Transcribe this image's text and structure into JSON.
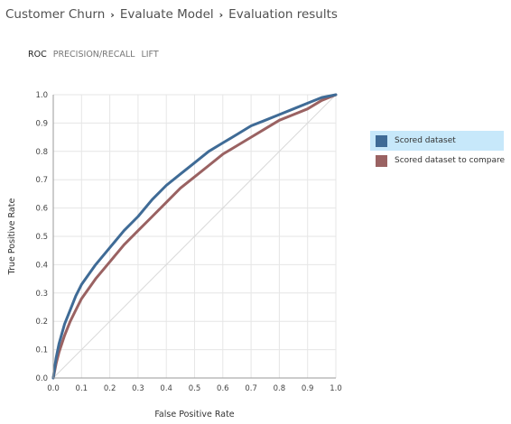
{
  "breadcrumb": {
    "items": [
      "Customer Churn",
      "Evaluate Model",
      "Evaluation results"
    ],
    "separator": "›"
  },
  "tabs": [
    {
      "label": "ROC",
      "active": true
    },
    {
      "label": "PRECISION/RECALL",
      "active": false
    },
    {
      "label": "LIFT",
      "active": false
    }
  ],
  "legend": {
    "items": [
      {
        "label": "Scored dataset",
        "color": "#3f6b96",
        "selected": true
      },
      {
        "label": "Scored dataset to compare",
        "color": "#9a6262",
        "selected": false
      }
    ]
  },
  "chart_data": {
    "type": "line",
    "xlabel": "False Positive Rate",
    "ylabel": "True Positive Rate",
    "xlim": [
      0,
      1
    ],
    "ylim": [
      0,
      1
    ],
    "xticks": [
      "0.0",
      "0.1",
      "0.2",
      "0.3",
      "0.4",
      "0.5",
      "0.6",
      "0.7",
      "0.8",
      "0.9",
      "1.0"
    ],
    "yticks": [
      "0.0",
      "0.1",
      "0.2",
      "0.3",
      "0.4",
      "0.5",
      "0.6",
      "0.7",
      "0.8",
      "0.9",
      "1.0"
    ],
    "grid": true,
    "diagonal_reference": true,
    "series": [
      {
        "name": "Scored dataset",
        "color": "#3f6b96",
        "x": [
          0.0,
          0.01,
          0.02,
          0.04,
          0.06,
          0.08,
          0.1,
          0.15,
          0.2,
          0.25,
          0.3,
          0.35,
          0.4,
          0.45,
          0.5,
          0.55,
          0.6,
          0.65,
          0.7,
          0.75,
          0.8,
          0.85,
          0.9,
          0.95,
          1.0
        ],
        "y": [
          0.0,
          0.07,
          0.12,
          0.19,
          0.24,
          0.29,
          0.33,
          0.4,
          0.46,
          0.52,
          0.57,
          0.63,
          0.68,
          0.72,
          0.76,
          0.8,
          0.83,
          0.86,
          0.89,
          0.91,
          0.93,
          0.95,
          0.97,
          0.99,
          1.0
        ]
      },
      {
        "name": "Scored dataset to compare",
        "color": "#9a6262",
        "x": [
          0.0,
          0.01,
          0.02,
          0.04,
          0.06,
          0.08,
          0.1,
          0.15,
          0.2,
          0.25,
          0.3,
          0.35,
          0.4,
          0.45,
          0.5,
          0.55,
          0.6,
          0.65,
          0.7,
          0.75,
          0.8,
          0.85,
          0.9,
          0.95,
          1.0
        ],
        "y": [
          0.0,
          0.05,
          0.09,
          0.15,
          0.2,
          0.24,
          0.28,
          0.35,
          0.41,
          0.47,
          0.52,
          0.57,
          0.62,
          0.67,
          0.71,
          0.75,
          0.79,
          0.82,
          0.85,
          0.88,
          0.91,
          0.93,
          0.95,
          0.98,
          1.0
        ]
      }
    ]
  }
}
